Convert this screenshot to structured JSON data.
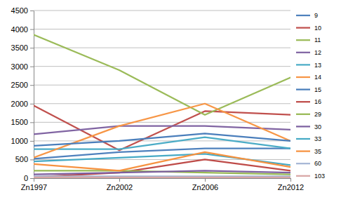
{
  "chart_data": {
    "type": "line",
    "categories": [
      "Zn1997",
      "Zn2002",
      "Zn2006",
      "Zn2012"
    ],
    "ylim": [
      0,
      4500
    ],
    "yticks": [
      0,
      500,
      1000,
      1500,
      2000,
      2500,
      3000,
      3500,
      4000,
      4500
    ],
    "grid": true,
    "legend": "right",
    "series": [
      {
        "name": "9",
        "color": "#4f81bd",
        "values": [
          520,
          700,
          800,
          800
        ]
      },
      {
        "name": "10",
        "color": "#c0504d",
        "values": [
          1950,
          750,
          1800,
          1700
        ]
      },
      {
        "name": "11",
        "color": "#9bbb59",
        "values": [
          3850,
          2900,
          1700,
          2700
        ]
      },
      {
        "name": "12",
        "color": "#8064a2",
        "values": [
          1180,
          1400,
          1400,
          1300
        ]
      },
      {
        "name": "13",
        "color": "#4bacc6",
        "values": [
          780,
          780,
          1100,
          800
        ]
      },
      {
        "name": "14",
        "color": "#f79646",
        "values": [
          550,
          1400,
          2000,
          1000
        ]
      },
      {
        "name": "15",
        "color": "#4a7ebb",
        "values": [
          870,
          1000,
          1200,
          1000
        ]
      },
      {
        "name": "16",
        "color": "#be4b48",
        "values": [
          30,
          150,
          500,
          200
        ]
      },
      {
        "name": "29",
        "color": "#98b954",
        "values": [
          200,
          200,
          150,
          100
        ]
      },
      {
        "name": "30",
        "color": "#7d60a0",
        "values": [
          100,
          150,
          200,
          150
        ]
      },
      {
        "name": "33",
        "color": "#46aac5",
        "values": [
          450,
          550,
          650,
          350
        ]
      },
      {
        "name": "35",
        "color": "#f69240",
        "values": [
          380,
          200,
          700,
          300
        ]
      },
      {
        "name": "60",
        "color": "#a5b6d5",
        "values": [
          50,
          50,
          50,
          50
        ]
      },
      {
        "name": "103",
        "color": "#d8a6a5",
        "values": [
          20,
          20,
          20,
          20
        ]
      }
    ]
  }
}
